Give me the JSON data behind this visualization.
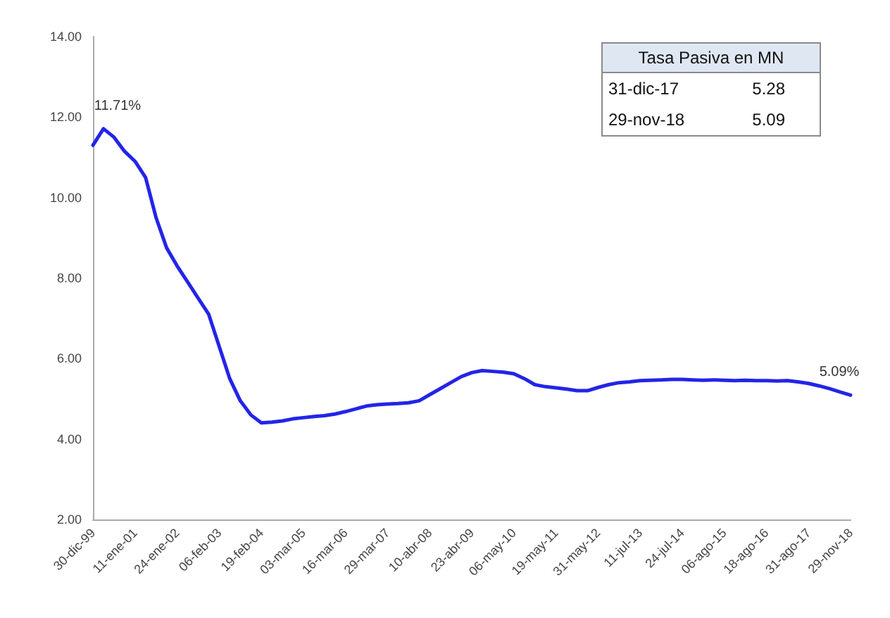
{
  "chart_data": {
    "type": "line",
    "categories": [
      "30-dic-99",
      null,
      null,
      null,
      "11-ene-01",
      null,
      null,
      null,
      "24-ene-02",
      null,
      null,
      null,
      "06-feb-03",
      null,
      null,
      null,
      "19-feb-04",
      null,
      null,
      null,
      "03-mar-05",
      null,
      null,
      null,
      "16-mar-06",
      null,
      null,
      null,
      "29-mar-07",
      null,
      null,
      null,
      "10-abr-08",
      null,
      null,
      null,
      "23-abr-09",
      null,
      null,
      null,
      "06-may-10",
      null,
      null,
      null,
      "19-may-11",
      null,
      null,
      null,
      "31-may-12",
      null,
      null,
      null,
      "11-jul-13",
      null,
      null,
      null,
      "24-jul-14",
      null,
      null,
      null,
      "06-ago-15",
      null,
      null,
      null,
      "18-ago-16",
      null,
      null,
      null,
      "31-ago-17",
      null,
      null,
      null,
      "29-nov-18"
    ],
    "series": [
      {
        "color": "#2424e8",
        "values": [
          11.3,
          11.71,
          11.5,
          11.15,
          10.9,
          10.5,
          9.5,
          8.75,
          8.3,
          7.9,
          7.5,
          7.1,
          6.3,
          5.5,
          4.95,
          4.6,
          4.4,
          4.42,
          4.45,
          4.5,
          4.53,
          4.56,
          4.58,
          4.62,
          4.68,
          4.75,
          4.82,
          4.85,
          4.87,
          4.88,
          4.9,
          4.95,
          5.1,
          5.25,
          5.4,
          5.55,
          5.65,
          5.7,
          5.68,
          5.66,
          5.62,
          5.5,
          5.35,
          5.3,
          5.27,
          5.24,
          5.2,
          5.2,
          5.28,
          5.35,
          5.4,
          5.42,
          5.45,
          5.46,
          5.47,
          5.48,
          5.48,
          5.47,
          5.46,
          5.47,
          5.46,
          5.45,
          5.46,
          5.45,
          5.45,
          5.44,
          5.45,
          5.42,
          5.38,
          5.32,
          5.25,
          5.17,
          5.09
        ],
        "value_labels": [
          null,
          "11.71%",
          null,
          null,
          null,
          null,
          null,
          null,
          null,
          null,
          null,
          null,
          null,
          null,
          null,
          null,
          null,
          null,
          null,
          null,
          null,
          null,
          null,
          null,
          null,
          null,
          null,
          null,
          null,
          null,
          null,
          null,
          null,
          null,
          null,
          null,
          null,
          null,
          null,
          null,
          null,
          null,
          null,
          null,
          null,
          null,
          null,
          null,
          null,
          null,
          null,
          null,
          null,
          null,
          null,
          null,
          null,
          null,
          null,
          null,
          null,
          null,
          null,
          null,
          null,
          null,
          null,
          null,
          null,
          null,
          null,
          null,
          "5.09%"
        ]
      }
    ],
    "ylim": [
      2,
      14
    ],
    "yticks": [
      {
        "value": 2,
        "label": "2.00"
      },
      {
        "value": 4,
        "label": "4.00"
      },
      {
        "value": 6,
        "label": "6.00"
      },
      {
        "value": 8,
        "label": "8.00"
      },
      {
        "value": 10,
        "label": "10.00"
      },
      {
        "value": 12,
        "label": "12.00"
      },
      {
        "value": 14,
        "label": "14.00"
      }
    ],
    "grid": false,
    "marker": "none",
    "line_style": "solid",
    "annotations": [
      "Tasa Pasiva en MN",
      "31-dic-17",
      "5.28",
      "29-nov-18",
      "5.09"
    ]
  }
}
